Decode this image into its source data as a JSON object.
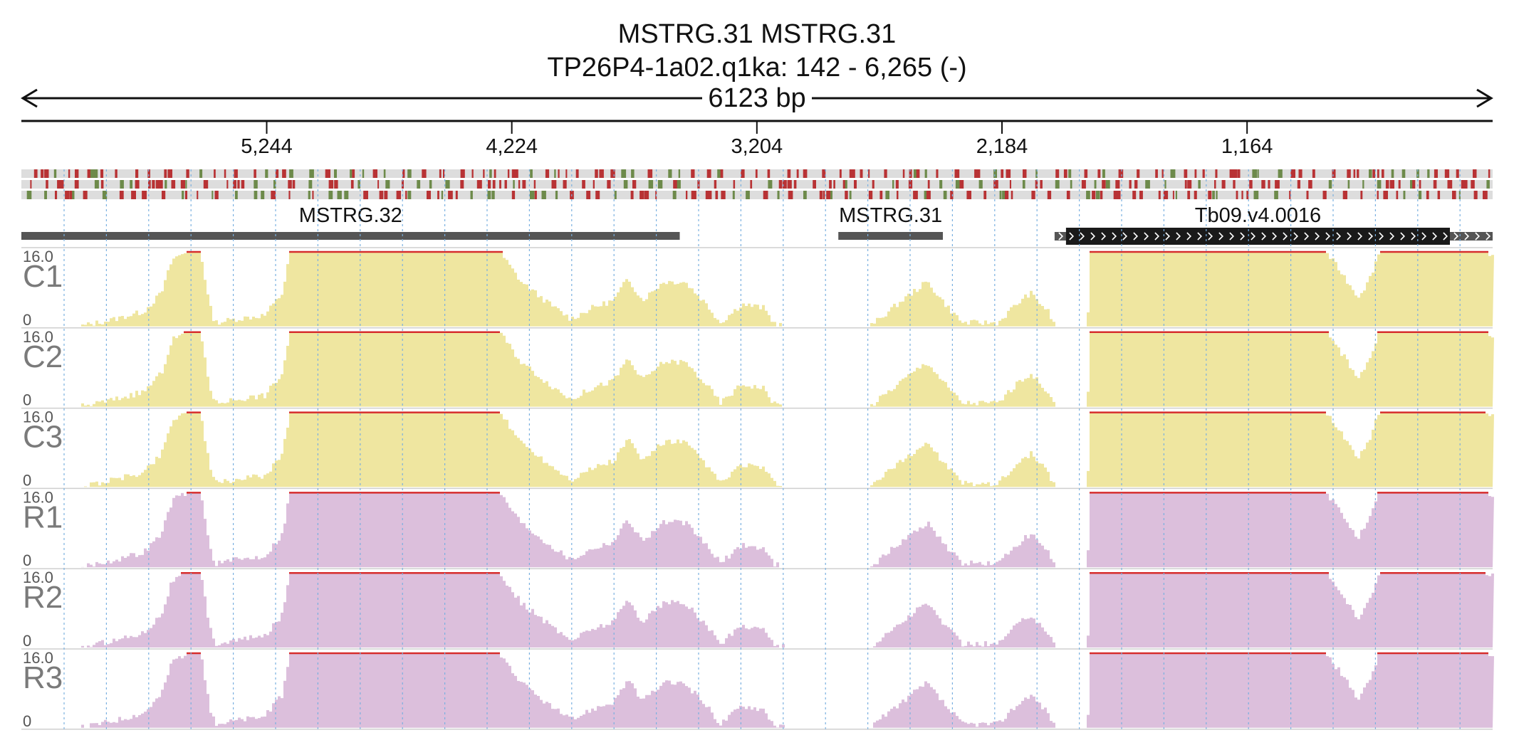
{
  "header": {
    "title_line1": "MSTRG.31   MSTRG.31",
    "title_line2": "TP26P4-1a02.q1ka: 142 - 6,265 (-)",
    "span_label": "6123 bp"
  },
  "ruler": {
    "region_start": 142,
    "region_end": 6265,
    "strand": "-",
    "ticks": [
      {
        "value": 5244,
        "label": "5,244"
      },
      {
        "value": 4224,
        "label": "4,224"
      },
      {
        "value": 3204,
        "label": "3,204"
      },
      {
        "value": 2184,
        "label": "2,184"
      },
      {
        "value": 1164,
        "label": "1,164"
      }
    ]
  },
  "genes": [
    {
      "label": "MSTRG.32",
      "start": 6265,
      "end": 3525,
      "style": "gray",
      "color": "#555555"
    },
    {
      "label": "MSTRG.31",
      "start": 2865,
      "end": 2430,
      "style": "gray",
      "color": "#555555"
    },
    {
      "label": "Tb09.v4.0016",
      "start": 1965,
      "end": 142,
      "style": "black-strand",
      "color": "#1a1a1a",
      "strand": "-"
    }
  ],
  "colors": {
    "red_snp": "#b83234",
    "green_snp": "#6d8a4a",
    "yellow_fill": "#efe6a0",
    "purple_fill": "#dcbfdc",
    "saturation_line": "#d62d2d",
    "grid_line": "#7ab0e0"
  },
  "tracks": [
    {
      "name": "C1",
      "max": "16.0",
      "min": "0",
      "color": "#efe6a0"
    },
    {
      "name": "C2",
      "max": "16.0",
      "min": "0",
      "color": "#efe6a0"
    },
    {
      "name": "C3",
      "max": "16.0",
      "min": "0",
      "color": "#efe6a0"
    },
    {
      "name": "R1",
      "max": "16.0",
      "min": "0",
      "color": "#dcbfdc"
    },
    {
      "name": "R2",
      "max": "16.0",
      "min": "0",
      "color": "#dcbfdc"
    },
    {
      "name": "R3",
      "max": "16.0",
      "min": "0",
      "color": "#dcbfdc"
    }
  ]
}
